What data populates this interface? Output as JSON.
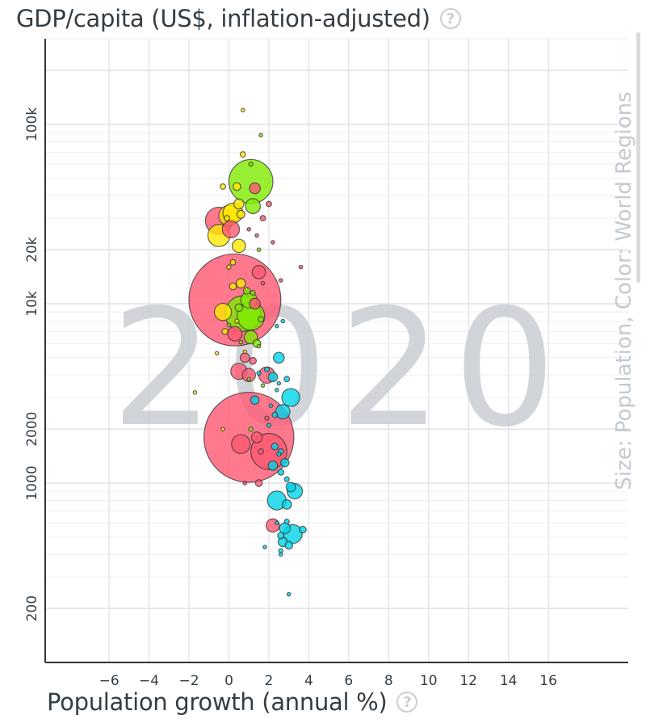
{
  "chart_data": {
    "type": "scatter",
    "year": "2020",
    "ylabel": "GDP/capita (US$, inflation-adjusted)",
    "xlabel": "Population growth (annual %)",
    "size_color_note": "Size: Population, Color: World Regions",
    "y_scale": "log",
    "xlim": [
      -9.2,
      20
    ],
    "ylim": [
      100,
      300000
    ],
    "x_ticks": [
      -6,
      -4,
      -2,
      0,
      2,
      4,
      6,
      8,
      10,
      12,
      14,
      16
    ],
    "x_tick_labels": [
      "−6",
      "−4",
      "−2",
      "0",
      "2",
      "4",
      "6",
      "8",
      "10",
      "12",
      "14",
      "16"
    ],
    "y_ticks": [
      {
        "value": 200,
        "label": "200"
      },
      {
        "value": 1000,
        "label": "1000"
      },
      {
        "value": 2000,
        "label": "2000"
      },
      {
        "value": 10000,
        "label": "10k"
      },
      {
        "value": 20000,
        "label": "20k"
      },
      {
        "value": 100000,
        "label": "100k"
      }
    ],
    "grid": true,
    "colors": {
      "asia": "#ff5872",
      "europe": "#ffe700",
      "americas": "#7feb00",
      "africa": "#00d5e9"
    },
    "points": [
      {
        "x": 0.7,
        "y": 120000,
        "pop": 0.04,
        "region": "europe"
      },
      {
        "x": 1.6,
        "y": 87000,
        "pop": 0.05,
        "region": "americas"
      },
      {
        "x": 0.7,
        "y": 68000,
        "pop": 5,
        "region": "europe"
      },
      {
        "x": 1.1,
        "y": 60000,
        "pop": 3,
        "region": "americas"
      },
      {
        "x": 1.1,
        "y": 48000,
        "pop": 330,
        "region": "americas"
      },
      {
        "x": 1.3,
        "y": 44000,
        "pop": 20,
        "region": "asia"
      },
      {
        "x": 0.4,
        "y": 45000,
        "pop": 10,
        "region": "europe"
      },
      {
        "x": -0.3,
        "y": 45000,
        "pop": 5,
        "region": "europe"
      },
      {
        "x": 2.0,
        "y": 36000,
        "pop": 5,
        "region": "asia"
      },
      {
        "x": 0.5,
        "y": 36000,
        "pop": 17,
        "region": "europe"
      },
      {
        "x": 1.2,
        "y": 35000,
        "pop": 38,
        "region": "americas"
      },
      {
        "x": 0.2,
        "y": 32000,
        "pop": 67,
        "region": "europe"
      },
      {
        "x": 0.0,
        "y": 31000,
        "pop": 70,
        "region": "europe"
      },
      {
        "x": 0.6,
        "y": 31500,
        "pop": 11,
        "region": "europe"
      },
      {
        "x": -0.1,
        "y": 30000,
        "pop": 5,
        "region": "europe"
      },
      {
        "x": 1.7,
        "y": 30000,
        "pop": 5,
        "region": "asia"
      },
      {
        "x": -0.5,
        "y": 29000,
        "pop": 125,
        "region": "asia"
      },
      {
        "x": 0.1,
        "y": 26000,
        "pop": 50,
        "region": "asia"
      },
      {
        "x": -0.5,
        "y": 24000,
        "pop": 83,
        "region": "europe"
      },
      {
        "x": 1.0,
        "y": 26000,
        "pop": 1.5,
        "region": "asia"
      },
      {
        "x": 1.4,
        "y": 24000,
        "pop": 0.5,
        "region": "asia"
      },
      {
        "x": 2.2,
        "y": 22000,
        "pop": 0.3,
        "region": "asia"
      },
      {
        "x": 0.5,
        "y": 21000,
        "pop": 30,
        "region": "europe"
      },
      {
        "x": 1.5,
        "y": 20000,
        "pop": 0.3,
        "region": "americas"
      },
      {
        "x": 0.2,
        "y": 17000,
        "pop": 5,
        "region": "europe"
      },
      {
        "x": 0.0,
        "y": 16000,
        "pop": 3,
        "region": "europe"
      },
      {
        "x": 3.6,
        "y": 16000,
        "pop": 0.5,
        "region": "asia"
      },
      {
        "x": 1.5,
        "y": 15000,
        "pop": 30,
        "region": "asia"
      },
      {
        "x": 2.6,
        "y": 13500,
        "pop": 1.5,
        "region": "asia"
      },
      {
        "x": 0.6,
        "y": 13000,
        "pop": 15,
        "region": "europe"
      },
      {
        "x": 0.2,
        "y": 12500,
        "pop": 8,
        "region": "europe"
      },
      {
        "x": 1.2,
        "y": 11500,
        "pop": 4,
        "region": "americas"
      },
      {
        "x": 1.0,
        "y": 10500,
        "pop": 45,
        "region": "americas"
      },
      {
        "x": 0.9,
        "y": 11800,
        "pop": 8,
        "region": "americas"
      },
      {
        "x": 0.3,
        "y": 10500,
        "pop": 1440,
        "region": "asia"
      },
      {
        "x": 1.3,
        "y": 10000,
        "pop": 20,
        "region": "asia"
      },
      {
        "x": 0.5,
        "y": 9500,
        "pop": 10,
        "region": "americas"
      },
      {
        "x": -0.3,
        "y": 9000,
        "pop": 50,
        "region": "europe"
      },
      {
        "x": 1.1,
        "y": 8500,
        "pop": 130,
        "region": "americas"
      },
      {
        "x": 0.7,
        "y": 8800,
        "pop": 215,
        "region": "americas"
      },
      {
        "x": 0.4,
        "y": 8000,
        "pop": 3,
        "region": "europe"
      },
      {
        "x": 1.6,
        "y": 8200,
        "pop": 5,
        "region": "americas"
      },
      {
        "x": 0.0,
        "y": 7600,
        "pop": 0.5,
        "region": "americas"
      },
      {
        "x": -0.2,
        "y": 7000,
        "pop": 6,
        "region": "europe"
      },
      {
        "x": 0.3,
        "y": 6800,
        "pop": 35,
        "region": "asia"
      },
      {
        "x": 2.4,
        "y": 7500,
        "pop": 0.3,
        "region": "africa"
      },
      {
        "x": 2.7,
        "y": 8000,
        "pop": 0.2,
        "region": "africa"
      },
      {
        "x": 1.1,
        "y": 6500,
        "pop": 30,
        "region": "americas"
      },
      {
        "x": 1.4,
        "y": 6000,
        "pop": 10,
        "region": "americas"
      },
      {
        "x": 1.5,
        "y": 5800,
        "pop": 1.5,
        "region": "americas"
      },
      {
        "x": -0.6,
        "y": 5300,
        "pop": 0.5,
        "region": "europe"
      },
      {
        "x": 0.8,
        "y": 5000,
        "pop": 15,
        "region": "asia"
      },
      {
        "x": 1.2,
        "y": 4800,
        "pop": 8,
        "region": "asia"
      },
      {
        "x": 2.5,
        "y": 5000,
        "pop": 20,
        "region": "africa"
      },
      {
        "x": 0.5,
        "y": 4200,
        "pop": 45,
        "region": "asia"
      },
      {
        "x": 1.9,
        "y": 4000,
        "pop": 45,
        "region": "asia"
      },
      {
        "x": 1.0,
        "y": 4000,
        "pop": 30,
        "region": "asia"
      },
      {
        "x": 1.9,
        "y": 4300,
        "pop": 4,
        "region": "africa"
      },
      {
        "x": 1.5,
        "y": 4100,
        "pop": 3,
        "region": "africa"
      },
      {
        "x": 2.2,
        "y": 3900,
        "pop": 15,
        "region": "africa"
      },
      {
        "x": 1.0,
        "y": 3800,
        "pop": 0.7,
        "region": "americas"
      },
      {
        "x": 2.5,
        "y": 3600,
        "pop": 0.5,
        "region": "africa"
      },
      {
        "x": 2.9,
        "y": 3800,
        "pop": 5,
        "region": "africa"
      },
      {
        "x": 1.7,
        "y": 3500,
        "pop": 0.4,
        "region": "americas"
      },
      {
        "x": 2.4,
        "y": 3300,
        "pop": 2,
        "region": "africa"
      },
      {
        "x": -1.7,
        "y": 3200,
        "pop": 0.5,
        "region": "europe"
      },
      {
        "x": 1.3,
        "y": 2900,
        "pop": 12,
        "region": "africa"
      },
      {
        "x": 3.1,
        "y": 3000,
        "pop": 55,
        "region": "africa"
      },
      {
        "x": 2.1,
        "y": 2700,
        "pop": 0.7,
        "region": "africa"
      },
      {
        "x": 2.7,
        "y": 2500,
        "pop": 35,
        "region": "africa"
      },
      {
        "x": 2.3,
        "y": 2400,
        "pop": 5,
        "region": "africa"
      },
      {
        "x": 1.9,
        "y": 2300,
        "pop": 3,
        "region": "asia"
      },
      {
        "x": 2.0,
        "y": 2100,
        "pop": 3,
        "region": "africa"
      },
      {
        "x": 1.1,
        "y": 2000,
        "pop": 3,
        "region": "americas"
      },
      {
        "x": 1.0,
        "y": 1800,
        "pop": 1380,
        "region": "asia"
      },
      {
        "x": -0.3,
        "y": 2000,
        "pop": 1,
        "region": "europe"
      },
      {
        "x": 1.4,
        "y": 1800,
        "pop": 20,
        "region": "asia"
      },
      {
        "x": 0.6,
        "y": 1650,
        "pop": 60,
        "region": "asia"
      },
      {
        "x": 2.0,
        "y": 1500,
        "pop": 220,
        "region": "asia"
      },
      {
        "x": 1.6,
        "y": 1500,
        "pop": 5,
        "region": "asia"
      },
      {
        "x": 2.3,
        "y": 1600,
        "pop": 8,
        "region": "africa"
      },
      {
        "x": 2.6,
        "y": 1500,
        "pop": 5,
        "region": "africa"
      },
      {
        "x": 2.5,
        "y": 1450,
        "pop": 3,
        "region": "africa"
      },
      {
        "x": 2.8,
        "y": 1300,
        "pop": 12,
        "region": "africa"
      },
      {
        "x": 2.2,
        "y": 1250,
        "pop": 15,
        "region": "africa"
      },
      {
        "x": 2.6,
        "y": 1150,
        "pop": 6,
        "region": "africa"
      },
      {
        "x": 2.9,
        "y": 1050,
        "pop": 4,
        "region": "africa"
      },
      {
        "x": 1.5,
        "y": 1000,
        "pop": 8,
        "region": "asia"
      },
      {
        "x": 0.8,
        "y": 1000,
        "pop": 0.3,
        "region": "asia"
      },
      {
        "x": 3.1,
        "y": 950,
        "pop": 15,
        "region": "africa"
      },
      {
        "x": 3.3,
        "y": 900,
        "pop": 40,
        "region": "africa"
      },
      {
        "x": 2.4,
        "y": 800,
        "pop": 60,
        "region": "africa"
      },
      {
        "x": 2.9,
        "y": 760,
        "pop": 15,
        "region": "africa"
      },
      {
        "x": 2.4,
        "y": 600,
        "pop": 0.5,
        "region": "africa"
      },
      {
        "x": 2.9,
        "y": 610,
        "pop": 4,
        "region": "africa"
      },
      {
        "x": 2.2,
        "y": 580,
        "pop": 30,
        "region": "asia"
      },
      {
        "x": 2.8,
        "y": 560,
        "pop": 20,
        "region": "africa"
      },
      {
        "x": 3.2,
        "y": 520,
        "pop": 60,
        "region": "africa"
      },
      {
        "x": 3.7,
        "y": 550,
        "pop": 8,
        "region": "africa"
      },
      {
        "x": 2.6,
        "y": 510,
        "pop": 7,
        "region": "africa"
      },
      {
        "x": 2.7,
        "y": 470,
        "pop": 15,
        "region": "africa"
      },
      {
        "x": 3.0,
        "y": 450,
        "pop": 10,
        "region": "africa"
      },
      {
        "x": 2.6,
        "y": 420,
        "pop": 3,
        "region": "africa"
      },
      {
        "x": 1.8,
        "y": 440,
        "pop": 0.3,
        "region": "africa"
      },
      {
        "x": 2.6,
        "y": 400,
        "pop": 2,
        "region": "africa"
      },
      {
        "x": 3.0,
        "y": 240,
        "pop": 1,
        "region": "africa"
      },
      {
        "x": 0.8,
        "y": 5400,
        "pop": 0.3,
        "region": "europe"
      },
      {
        "x": 0.6,
        "y": 6100,
        "pop": 0.4,
        "region": "americas"
      },
      {
        "x": 1.7,
        "y": 13000,
        "pop": 0.3,
        "region": "asia"
      }
    ]
  }
}
